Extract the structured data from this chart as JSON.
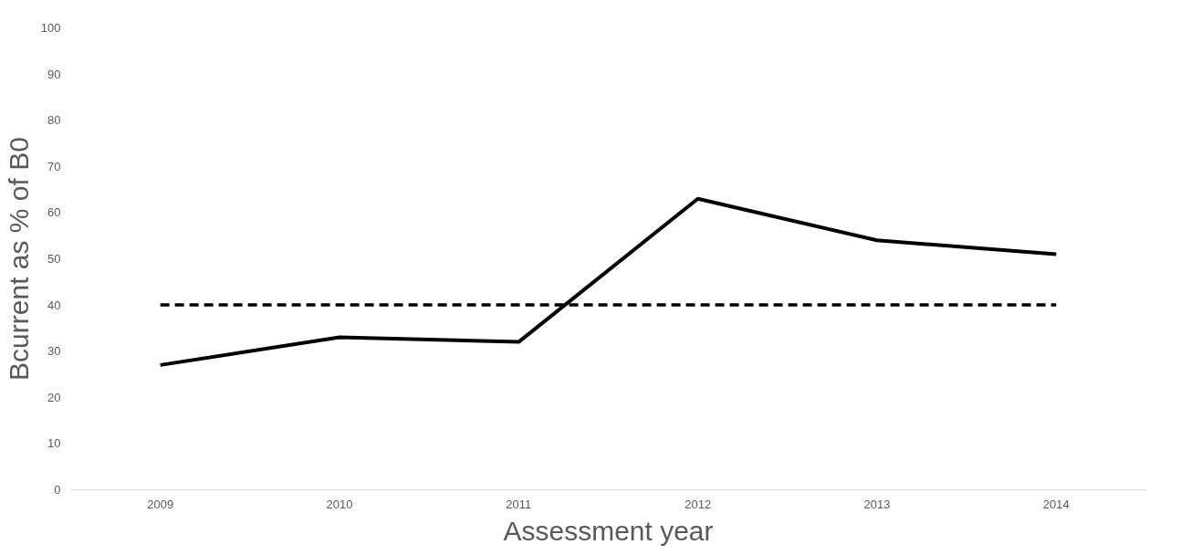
{
  "chart_data": {
    "type": "line",
    "xlabel": "Assessment year",
    "ylabel": "Bcurrent as % of B0",
    "categories": [
      "2009",
      "2010",
      "2011",
      "2012",
      "2013",
      "2014"
    ],
    "series": [
      {
        "color": "#000000",
        "values": [
          27,
          33,
          32,
          63,
          54,
          51
        ]
      }
    ],
    "ylim": [
      0,
      100
    ],
    "yticks": [
      0,
      10,
      20,
      30,
      40,
      50,
      60,
      70,
      80,
      90,
      100
    ],
    "ref_lines": [
      {
        "axis": "y",
        "value": 40,
        "color": "#000000",
        "line_style": "dashed"
      }
    ],
    "grid": false,
    "marker": "none",
    "line_style": "solid"
  }
}
